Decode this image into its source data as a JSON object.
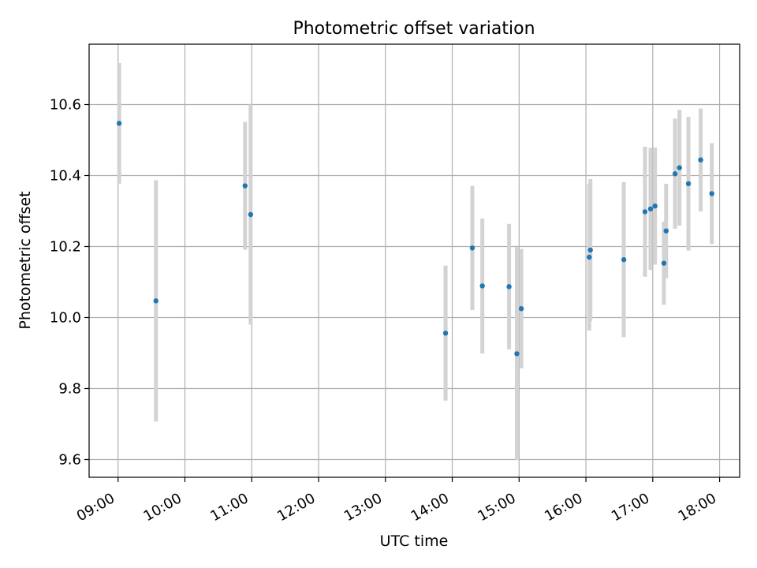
{
  "chart_data": {
    "type": "scatter",
    "title": "Photometric offset variation",
    "xlabel": "UTC time",
    "ylabel": "Photometric offset",
    "ylim": [
      9.55,
      10.77
    ],
    "xlim": [
      "08:34",
      "18:18"
    ],
    "grid": true,
    "x_ticks": [
      "09:00",
      "10:00",
      "11:00",
      "12:00",
      "13:00",
      "14:00",
      "15:00",
      "16:00",
      "17:00",
      "18:00"
    ],
    "y_ticks": [
      "9.6",
      "9.8",
      "10.0",
      "10.2",
      "10.4",
      "10.6"
    ],
    "points": [
      {
        "x": "09:01",
        "y": 10.547,
        "err": 0.17
      },
      {
        "x": "09:34",
        "y": 10.047,
        "err": 0.34
      },
      {
        "x": "10:54",
        "y": 10.371,
        "err": 0.18
      },
      {
        "x": "10:59",
        "y": 10.29,
        "err": 0.31
      },
      {
        "x": "13:54",
        "y": 9.956,
        "err": 0.19
      },
      {
        "x": "14:18",
        "y": 10.196,
        "err": 0.175
      },
      {
        "x": "14:27",
        "y": 10.089,
        "err": 0.19
      },
      {
        "x": "14:51",
        "y": 10.087,
        "err": 0.177
      },
      {
        "x": "14:58",
        "y": 9.898,
        "err": 0.3
      },
      {
        "x": "15:02",
        "y": 10.025,
        "err": 0.168
      },
      {
        "x": "16:03",
        "y": 10.17,
        "err": 0.207
      },
      {
        "x": "16:04",
        "y": 10.19,
        "err": 0.2
      },
      {
        "x": "16:34",
        "y": 10.163,
        "err": 0.218
      },
      {
        "x": "16:53",
        "y": 10.298,
        "err": 0.183
      },
      {
        "x": "16:58",
        "y": 10.306,
        "err": 0.172
      },
      {
        "x": "17:02",
        "y": 10.314,
        "err": 0.165
      },
      {
        "x": "17:10",
        "y": 10.153,
        "err": 0.117
      },
      {
        "x": "17:12",
        "y": 10.244,
        "err": 0.133
      },
      {
        "x": "17:20",
        "y": 10.405,
        "err": 0.155
      },
      {
        "x": "17:24",
        "y": 10.422,
        "err": 0.163
      },
      {
        "x": "17:32",
        "y": 10.377,
        "err": 0.188
      },
      {
        "x": "17:43",
        "y": 10.444,
        "err": 0.145
      },
      {
        "x": "17:53",
        "y": 10.349,
        "err": 0.142
      }
    ],
    "colors": {
      "points": "#1f77b4",
      "errorbars": "#d3d3d3",
      "grid": "#b0b0b0"
    }
  }
}
